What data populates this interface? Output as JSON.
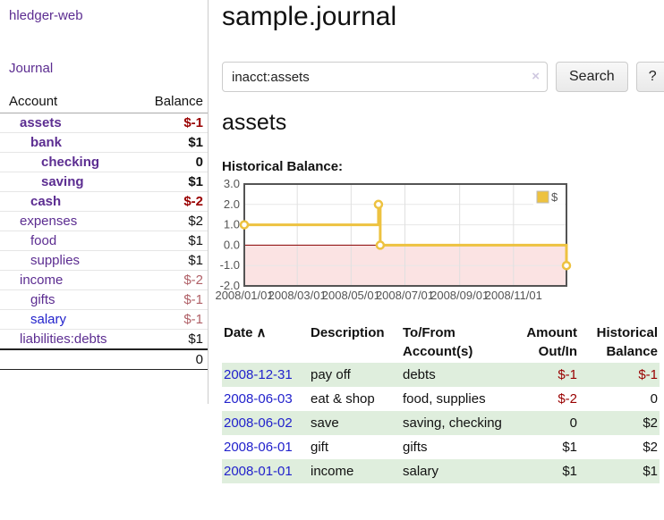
{
  "app": {
    "brand": "hledger-web",
    "nav_journal": "Journal"
  },
  "colors": {
    "accent_purple": "#5c2d91",
    "link_blue": "#2222cc",
    "negative_red": "#990000",
    "negative_muted": "#b06067",
    "row_green": "#dfeedd",
    "series_gold": "#EDC240",
    "chart_negative_fill": "#fbe3e3",
    "chart_zero_line": "#8b0000"
  },
  "sidebar": {
    "header": {
      "account": "Account",
      "balance": "Balance"
    },
    "accounts": [
      {
        "name": "assets",
        "balance": "$-1",
        "indent": 1,
        "bold": true,
        "balance_style": "neg-strong"
      },
      {
        "name": "bank",
        "balance": "$1",
        "indent": 2,
        "bold": true,
        "balance_style": "pos-strong"
      },
      {
        "name": "checking",
        "balance": "0",
        "indent": 3,
        "bold": true,
        "balance_style": "pos-strong"
      },
      {
        "name": "saving",
        "balance": "$1",
        "indent": 3,
        "bold": true,
        "balance_style": "pos-strong"
      },
      {
        "name": "cash",
        "balance": "$-2",
        "indent": 2,
        "bold": true,
        "balance_style": "neg-strong"
      },
      {
        "name": "expenses",
        "balance": "$2",
        "indent": 1,
        "bold": false,
        "balance_style": "pos"
      },
      {
        "name": "food",
        "balance": "$1",
        "indent": 2,
        "bold": false,
        "balance_style": "pos"
      },
      {
        "name": "supplies",
        "balance": "$1",
        "indent": 2,
        "bold": false,
        "balance_style": "pos"
      },
      {
        "name": "income",
        "balance": "$-2",
        "indent": 1,
        "bold": false,
        "balance_style": "neg-muted"
      },
      {
        "name": "gifts",
        "balance": "$-1",
        "indent": 2,
        "bold": false,
        "balance_style": "neg-muted"
      },
      {
        "name": "salary",
        "balance": "$-1",
        "indent": 2,
        "bold": false,
        "balance_style": "neg-muted",
        "link_style": "unvisited"
      },
      {
        "name": "liabilities:debts",
        "balance": "$1",
        "indent": 1,
        "bold": false,
        "balance_style": "pos"
      }
    ],
    "total": "0"
  },
  "main": {
    "title": "sample.journal",
    "search": {
      "value": "inacct:assets",
      "clear": "×",
      "button": "Search",
      "help": "?"
    },
    "account_heading": "assets"
  },
  "chart_data": {
    "type": "line",
    "title": "Historical Balance:",
    "x_start": "2008-01-01",
    "x_end": "2008-12-31",
    "x_ticks": [
      "2008/01/01",
      "2008/03/01",
      "2008/05/01",
      "2008/07/01",
      "2008/09/01",
      "2008/11/01"
    ],
    "y_ticks": [
      3.0,
      2.0,
      1.0,
      0.0,
      -1.0,
      -2.0
    ],
    "ylim": [
      -2,
      3
    ],
    "grid": true,
    "negative_fill": "#fbe3e3",
    "zero_line_color": "#8b0000",
    "legend": {
      "label": "$",
      "position": "top-right"
    },
    "series": [
      {
        "name": "$",
        "color": "#EDC240",
        "step": true,
        "points": [
          [
            "2008-01-01",
            1
          ],
          [
            "2008-06-01",
            2
          ],
          [
            "2008-06-03",
            0
          ],
          [
            "2008-12-31",
            -1
          ]
        ]
      }
    ]
  },
  "register": {
    "headers": {
      "date": "Date",
      "sort_icon": "∧",
      "description": "Description",
      "accounts": "To/From Account(s)",
      "amount": "Amount Out/In",
      "balance": "Historical Balance"
    },
    "rows": [
      {
        "date": "2008-12-31",
        "description": "pay off",
        "accounts": "debts",
        "amount": "$-1",
        "amount_neg": true,
        "balance": "$-1",
        "balance_neg": true,
        "shaded": true
      },
      {
        "date": "2008-06-03",
        "description": "eat & shop",
        "accounts": "food, supplies",
        "amount": "$-2",
        "amount_neg": true,
        "balance": "0",
        "balance_neg": false,
        "shaded": false
      },
      {
        "date": "2008-06-02",
        "description": "save",
        "accounts": "saving, checking",
        "amount": "0",
        "amount_neg": false,
        "balance": "$2",
        "balance_neg": false,
        "shaded": true
      },
      {
        "date": "2008-06-01",
        "description": "gift",
        "accounts": "gifts",
        "amount": "$1",
        "amount_neg": false,
        "balance": "$2",
        "balance_neg": false,
        "shaded": false
      },
      {
        "date": "2008-01-01",
        "description": "income",
        "accounts": "salary",
        "amount": "$1",
        "amount_neg": false,
        "balance": "$1",
        "balance_neg": false,
        "shaded": true
      }
    ]
  }
}
